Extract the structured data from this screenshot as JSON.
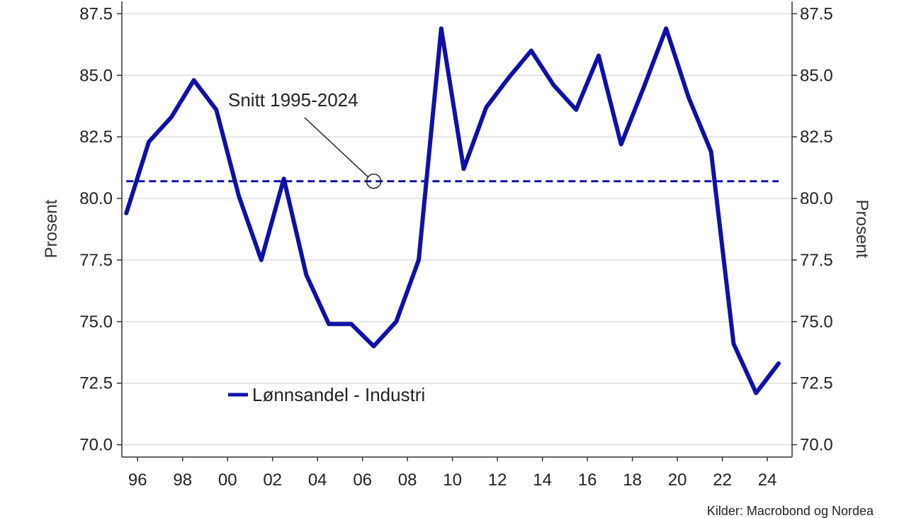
{
  "colors": {
    "series": "#1010a8",
    "grid": "#dddddd",
    "axis": "#333333",
    "annotation": "#222222"
  },
  "chart_data": {
    "type": "line",
    "ylabel_left": "Prosent",
    "ylabel_right": "Prosent",
    "ylim": [
      69.5,
      88
    ],
    "xlim": [
      1995.3,
      2025.1
    ],
    "y_ticks": [
      70.0,
      72.5,
      75.0,
      77.5,
      80.0,
      82.5,
      85.0,
      87.5
    ],
    "y_tick_labels": [
      "70.0",
      "72.5",
      "75.0",
      "77.5",
      "80.0",
      "82.5",
      "85.0",
      "87.5"
    ],
    "x_ticks": [
      1996,
      1998,
      2000,
      2002,
      2004,
      2006,
      2008,
      2010,
      2012,
      2014,
      2016,
      2018,
      2020,
      2022,
      2024
    ],
    "x_tick_labels": [
      "96",
      "98",
      "00",
      "02",
      "04",
      "06",
      "08",
      "10",
      "12",
      "14",
      "16",
      "18",
      "20",
      "22",
      "24"
    ],
    "grid": "horizontal",
    "legend_position": "bottom-left",
    "series": [
      {
        "name": "Lønnsandel - Industri",
        "x": [
          1995.5,
          1996.5,
          1997.5,
          1998.5,
          1999.5,
          2000.5,
          2001.5,
          2002.5,
          2003.5,
          2004.5,
          2005.5,
          2006.5,
          2007.5,
          2008.5,
          2009.5,
          2010.5,
          2011.5,
          2012.5,
          2013.5,
          2014.5,
          2015.5,
          2016.5,
          2017.5,
          2018.5,
          2019.5,
          2020.5,
          2021.5,
          2022.5,
          2023.5,
          2024.5
        ],
        "values": [
          79.4,
          82.3,
          83.3,
          84.8,
          83.6,
          80.1,
          77.5,
          80.8,
          76.9,
          74.9,
          74.9,
          74.0,
          75.0,
          77.5,
          86.9,
          81.2,
          83.7,
          84.9,
          86.0,
          84.6,
          83.6,
          85.8,
          82.2,
          84.5,
          86.9,
          84.1,
          81.9,
          74.1,
          72.1,
          73.3
        ]
      }
    ],
    "average": {
      "value": 80.7,
      "x_range": [
        1995.5,
        2024.5
      ]
    },
    "annotation": {
      "text": "Snitt 1995-2024",
      "x": 2006.5,
      "y": 80.7
    },
    "source": "Kilder: Macrobond og Nordea"
  }
}
